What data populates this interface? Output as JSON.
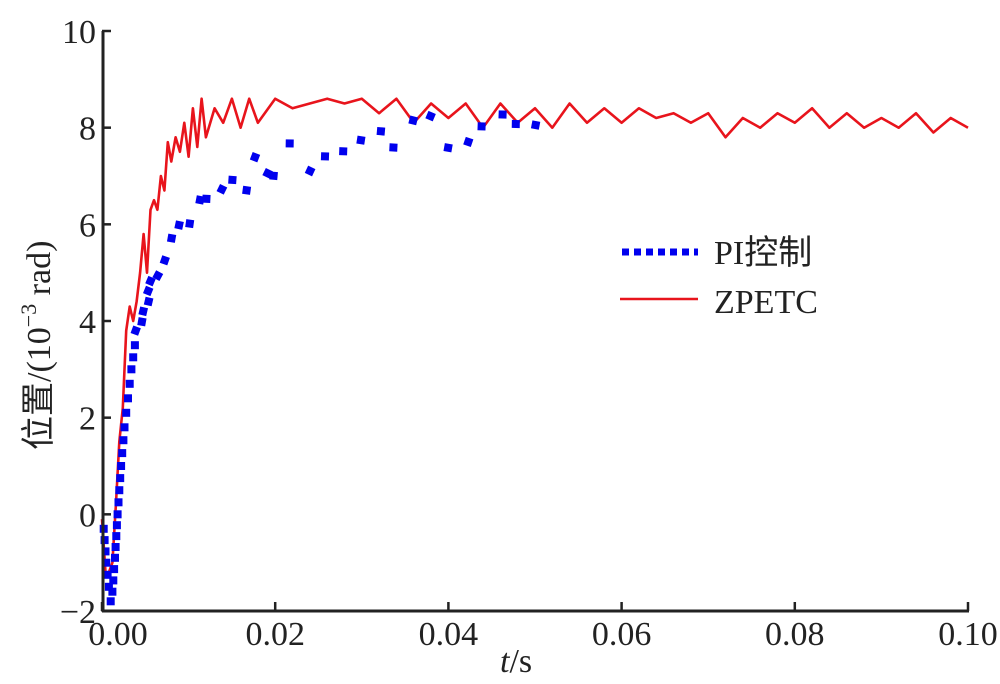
{
  "chart_data": {
    "type": "line",
    "title": "",
    "xlabel_italic": "t",
    "xlabel_rest": "/s",
    "ylabel_main": "位置/(10",
    "ylabel_sup": "−3",
    "ylabel_end": " rad)",
    "xlim": [
      0.0,
      0.1
    ],
    "ylim": [
      -2,
      10
    ],
    "xticks": [
      0.0,
      0.02,
      0.04,
      0.06,
      0.08,
      0.1
    ],
    "xtick_labels": [
      "0.00",
      "0.02",
      "0.04",
      "0.06",
      "0.08",
      "0.10"
    ],
    "yticks": [
      -2,
      0,
      2,
      4,
      6,
      8,
      10
    ],
    "ytick_labels": [
      "−2",
      "0",
      "2",
      "4",
      "6",
      "8",
      "10"
    ],
    "grid": false,
    "legend_position": "center-right",
    "series": [
      {
        "name": "PI控制",
        "style": "dotted-square-markers",
        "color": "#0000ee",
        "x_range": [
          0.0,
          0.052
        ],
        "points": [
          [
            0.0002,
            -0.3
          ],
          [
            0.0005,
            -1.0
          ],
          [
            0.0008,
            -1.5
          ],
          [
            0.001,
            -1.8
          ],
          [
            0.0012,
            -1.6
          ],
          [
            0.0015,
            -0.9
          ],
          [
            0.0018,
            0.0
          ],
          [
            0.0022,
            1.0
          ],
          [
            0.0026,
            1.8
          ],
          [
            0.003,
            2.4
          ],
          [
            0.0034,
            3.0
          ],
          [
            0.0038,
            3.5
          ],
          [
            0.0042,
            3.8
          ],
          [
            0.0048,
            4.2
          ],
          [
            0.0055,
            4.6
          ],
          [
            0.0062,
            5.0
          ],
          [
            0.007,
            5.3
          ],
          [
            0.008,
            5.6
          ],
          [
            0.009,
            5.9
          ],
          [
            0.01,
            6.1
          ],
          [
            0.011,
            6.3
          ],
          [
            0.012,
            6.5
          ],
          [
            0.0135,
            6.7
          ],
          [
            0.015,
            6.9
          ],
          [
            0.0165,
            7.0
          ],
          [
            0.018,
            7.1
          ],
          [
            0.02,
            7.3
          ],
          [
            0.022,
            7.3
          ],
          [
            0.024,
            7.4
          ],
          [
            0.026,
            7.4
          ],
          [
            0.028,
            7.5
          ],
          [
            0.03,
            7.5
          ],
          [
            0.032,
            7.6
          ],
          [
            0.034,
            7.7
          ],
          [
            0.036,
            7.8
          ],
          [
            0.038,
            7.8
          ],
          [
            0.04,
            7.8
          ],
          [
            0.042,
            7.9
          ],
          [
            0.044,
            7.9
          ],
          [
            0.046,
            7.9
          ],
          [
            0.048,
            7.9
          ],
          [
            0.05,
            8.0
          ],
          [
            0.052,
            8.0
          ]
        ]
      },
      {
        "name": "ZPETC",
        "style": "solid",
        "color": "#e8141c",
        "points": [
          [
            0.0,
            -0.1
          ],
          [
            0.0004,
            -1.2
          ],
          [
            0.0008,
            -1.2
          ],
          [
            0.0012,
            -1.0
          ],
          [
            0.0016,
            0.2
          ],
          [
            0.002,
            1.5
          ],
          [
            0.0024,
            2.2
          ],
          [
            0.0028,
            3.8
          ],
          [
            0.0032,
            4.3
          ],
          [
            0.0036,
            4.0
          ],
          [
            0.004,
            4.4
          ],
          [
            0.0044,
            5.0
          ],
          [
            0.0048,
            5.8
          ],
          [
            0.0052,
            5.0
          ],
          [
            0.0056,
            6.3
          ],
          [
            0.006,
            6.5
          ],
          [
            0.0064,
            6.3
          ],
          [
            0.0068,
            7.0
          ],
          [
            0.0072,
            6.7
          ],
          [
            0.0076,
            7.7
          ],
          [
            0.008,
            7.3
          ],
          [
            0.0085,
            7.8
          ],
          [
            0.009,
            7.5
          ],
          [
            0.0095,
            8.1
          ],
          [
            0.01,
            7.4
          ],
          [
            0.0105,
            8.4
          ],
          [
            0.011,
            7.6
          ],
          [
            0.0115,
            8.6
          ],
          [
            0.012,
            7.8
          ],
          [
            0.013,
            8.4
          ],
          [
            0.014,
            8.1
          ],
          [
            0.015,
            8.6
          ],
          [
            0.016,
            8.0
          ],
          [
            0.017,
            8.6
          ],
          [
            0.018,
            8.1
          ],
          [
            0.02,
            8.6
          ],
          [
            0.022,
            8.4
          ],
          [
            0.024,
            8.5
          ],
          [
            0.026,
            8.6
          ],
          [
            0.028,
            8.5
          ],
          [
            0.03,
            8.6
          ],
          [
            0.032,
            8.3
          ],
          [
            0.034,
            8.6
          ],
          [
            0.036,
            8.1
          ],
          [
            0.038,
            8.5
          ],
          [
            0.04,
            8.2
          ],
          [
            0.042,
            8.5
          ],
          [
            0.044,
            8.0
          ],
          [
            0.046,
            8.5
          ],
          [
            0.048,
            8.1
          ],
          [
            0.05,
            8.4
          ],
          [
            0.052,
            8.0
          ],
          [
            0.054,
            8.5
          ],
          [
            0.056,
            8.1
          ],
          [
            0.058,
            8.4
          ],
          [
            0.06,
            8.1
          ],
          [
            0.062,
            8.4
          ],
          [
            0.064,
            8.2
          ],
          [
            0.066,
            8.3
          ],
          [
            0.068,
            8.1
          ],
          [
            0.07,
            8.3
          ],
          [
            0.072,
            7.8
          ],
          [
            0.074,
            8.2
          ],
          [
            0.076,
            8.0
          ],
          [
            0.078,
            8.3
          ],
          [
            0.08,
            8.1
          ],
          [
            0.082,
            8.4
          ],
          [
            0.084,
            8.0
          ],
          [
            0.086,
            8.3
          ],
          [
            0.088,
            8.0
          ],
          [
            0.09,
            8.2
          ],
          [
            0.092,
            8.0
          ],
          [
            0.094,
            8.3
          ],
          [
            0.096,
            7.9
          ],
          [
            0.098,
            8.2
          ],
          [
            0.1,
            8.0
          ]
        ]
      }
    ]
  }
}
